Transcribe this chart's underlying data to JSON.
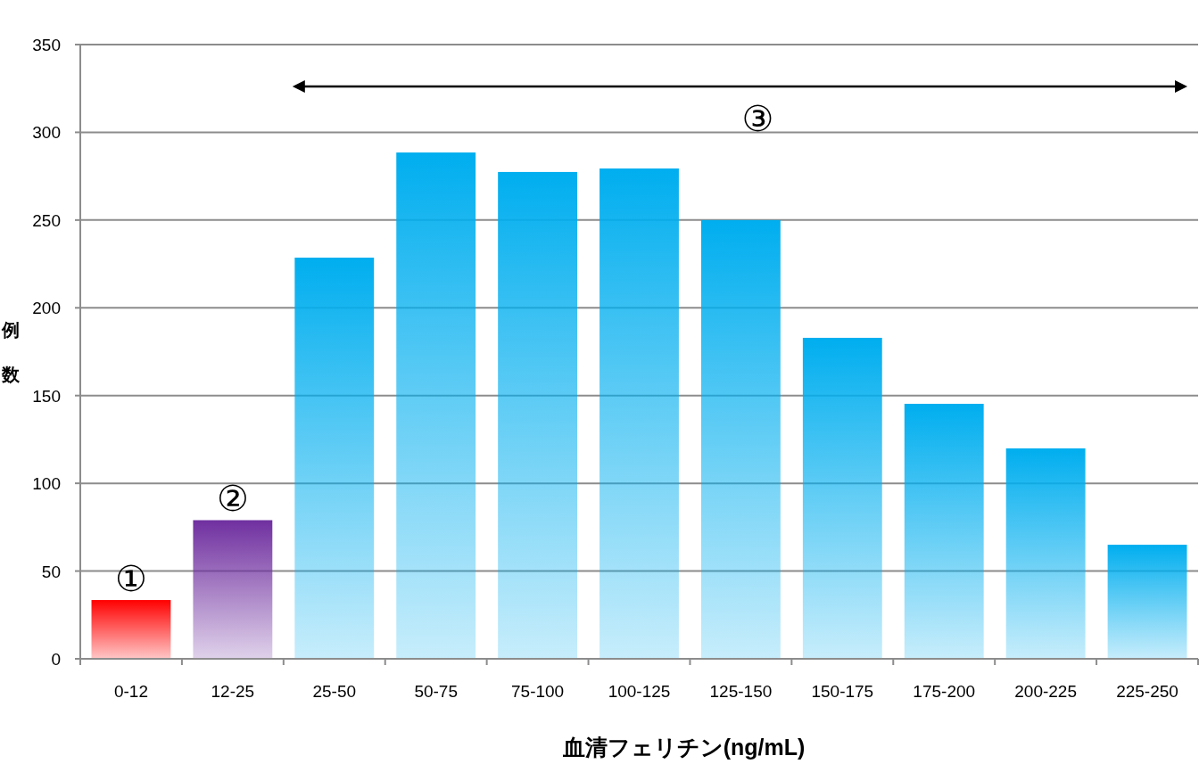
{
  "chart_data": {
    "type": "bar",
    "xlabel": "血清フェリチン(ng/mL)",
    "ylabel": "例数",
    "categories": [
      "0-12",
      "12-25",
      "25-50",
      "50-75",
      "75-100",
      "100-125",
      "125-150",
      "150-175",
      "175-200",
      "200-225",
      "225-250"
    ],
    "values": [
      33.5,
      79,
      228.6,
      288.5,
      277.4,
      279.4,
      250,
      182.9,
      145.3,
      119.9,
      65
    ],
    "colors": [
      "#ff0000",
      "#7030a0",
      "#00aeef",
      "#00aeef",
      "#00aeef",
      "#00aeef",
      "#00aeef",
      "#00aeef",
      "#00aeef",
      "#00aeef",
      "#00aeef"
    ],
    "ylim": [
      0,
      350
    ],
    "yticks": [
      0,
      50,
      100,
      150,
      200,
      250,
      300,
      350
    ],
    "grid": "y",
    "annotations": [
      {
        "text": "①",
        "x": "0-12",
        "y": 33.5
      },
      {
        "text": "②",
        "x": "12-25",
        "y": 79
      },
      "③"
    ]
  }
}
